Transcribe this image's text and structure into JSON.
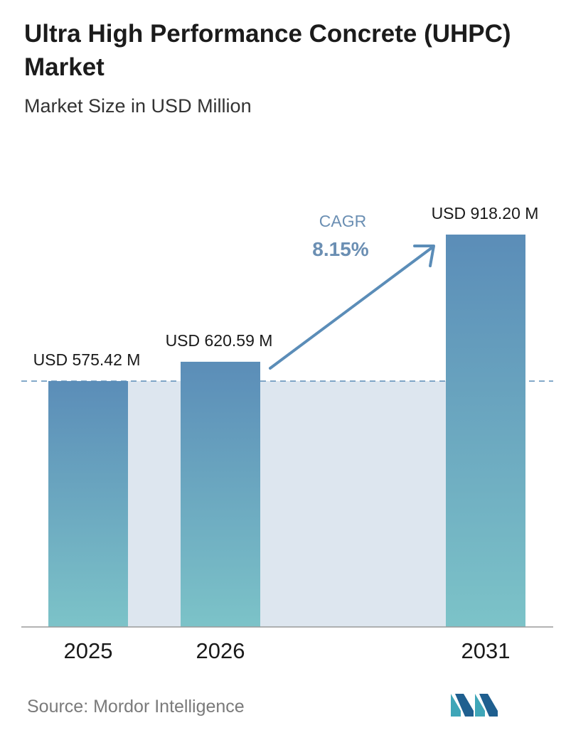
{
  "title": "Ultra High Performance Concrete (UHPC) Market",
  "subtitle": "Market Size in USD Million",
  "source": "Source:  Mordor Intelligence",
  "logo_icon": "mordor-intelligence-logo-icon",
  "colors": {
    "bar_top": "#5b8db8",
    "bar_bottom": "#7cc3c8",
    "band": "#dde6ef",
    "arrow": "#5b8db8",
    "cagr_text": "#6b8fb3"
  },
  "chart_data": {
    "type": "bar",
    "categories": [
      "2025",
      "2026",
      "2031"
    ],
    "values": [
      575.42,
      620.59,
      918.2
    ],
    "value_labels": [
      "USD 575.42 M",
      "USD 620.59 M",
      "USD 918.20 M"
    ],
    "title": "Ultra High Performance Concrete (UHPC) Market",
    "subtitle": "Market Size in USD Million",
    "ylim": [
      0,
      918.2
    ],
    "grid": false,
    "annotations": [
      {
        "label": "CAGR",
        "value": "8.15%"
      }
    ]
  }
}
